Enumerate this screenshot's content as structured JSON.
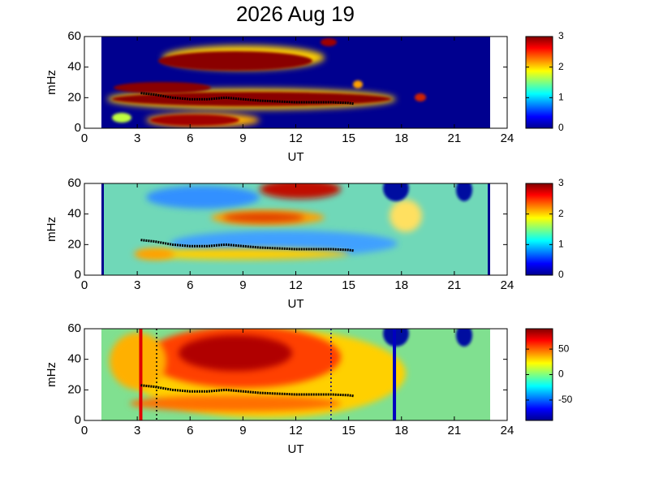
{
  "chart_data": [
    {
      "type": "heatmap",
      "title": "2026 Aug 19",
      "xlabel": "UT",
      "ylabel": "mHz",
      "xlim": [
        0,
        24
      ],
      "xticks": [
        0,
        3,
        6,
        9,
        12,
        15,
        18,
        21,
        24
      ],
      "ylim": [
        0,
        60
      ],
      "yticks": [
        0,
        20,
        40,
        60
      ],
      "clim": [
        0,
        3
      ],
      "cticks": [
        0,
        1,
        2,
        3
      ],
      "trace": {
        "color": "#000000",
        "x": [
          3.2,
          4,
          5,
          6,
          7,
          8,
          9,
          10,
          11,
          12,
          13,
          14,
          15,
          15.3
        ],
        "y": [
          23,
          22,
          20,
          19,
          19,
          20,
          19,
          18,
          17.5,
          17,
          17,
          17,
          16.5,
          16
        ]
      }
    },
    {
      "type": "heatmap",
      "xlabel": "UT",
      "ylabel": "mHz",
      "xlim": [
        0,
        24
      ],
      "xticks": [
        0,
        3,
        6,
        9,
        12,
        15,
        18,
        21,
        24
      ],
      "ylim": [
        0,
        60
      ],
      "yticks": [
        0,
        20,
        40,
        60
      ],
      "clim": [
        0,
        3
      ],
      "cticks": [
        0,
        1,
        2,
        3
      ],
      "trace": {
        "color": "#000000",
        "x": [
          3.2,
          4,
          5,
          6,
          7,
          8,
          9,
          10,
          11,
          12,
          13,
          14,
          15,
          15.3
        ],
        "y": [
          23,
          22,
          20,
          19,
          19,
          20,
          19,
          18,
          17.5,
          17,
          17,
          17,
          16.5,
          16
        ]
      }
    },
    {
      "type": "heatmap",
      "xlabel": "UT",
      "ylabel": "mHz",
      "xlim": [
        0,
        24
      ],
      "xticks": [
        0,
        3,
        6,
        9,
        12,
        15,
        18,
        21,
        24
      ],
      "ylim": [
        0,
        60
      ],
      "yticks": [
        0,
        20,
        40,
        60
      ],
      "clim": [
        -90,
        90
      ],
      "cticks": [
        -50,
        0,
        50
      ],
      "trace": {
        "color": "#000000",
        "x": [
          3.2,
          4,
          5,
          6,
          7,
          8,
          9,
          10,
          11,
          12,
          13,
          14,
          15,
          15.3
        ],
        "y": [
          23,
          22,
          20,
          19,
          19,
          20,
          19,
          18,
          17.5,
          17,
          17,
          17,
          16.5,
          16
        ]
      },
      "vlines": [
        {
          "x": 3.2,
          "color": "#e00000",
          "style": "solid"
        },
        {
          "x": 17.6,
          "color": "#0000c0",
          "style": "solid"
        },
        {
          "x": 4.1,
          "color": "#000000",
          "style": "dotted"
        },
        {
          "x": 14,
          "color": "#000080",
          "style": "dotted"
        }
      ]
    }
  ]
}
